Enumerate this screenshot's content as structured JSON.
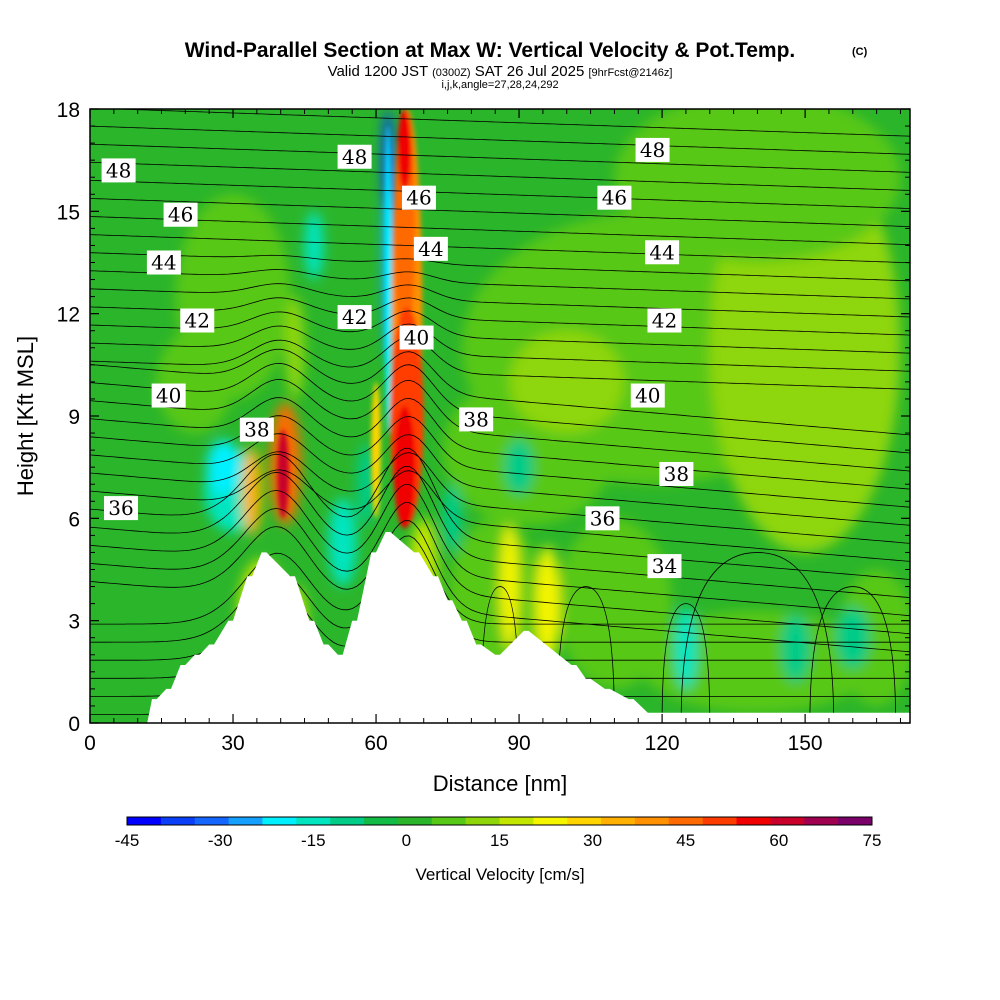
{
  "chart_data": {
    "type": "heatmap",
    "title": "Wind-Parallel Section at Max W: Vertical Velocity & Pot.Temp.",
    "title_unit": "(C)",
    "subtitle_prefix": "Valid 1200 JST",
    "subtitle_utc": "(0300Z)",
    "subtitle_date": "SAT 26 Jul 2025",
    "subtitle_fcst": "[9hrFcst@2146z]",
    "subtitle2": "i,j,k,angle=27,28,24,292",
    "xlabel": "Distance [nm]",
    "ylabel": "Height [Kft MSL]",
    "xlim": [
      0,
      172
    ],
    "ylim": [
      0,
      18
    ],
    "x_ticks": [
      "0",
      "30",
      "60",
      "90",
      "120",
      "150"
    ],
    "y_ticks": [
      "0",
      "3",
      "6",
      "9",
      "12",
      "15",
      "18"
    ],
    "grid": false,
    "colorbar": {
      "label": "Vertical Velocity [cm/s]",
      "range": [
        -45,
        75
      ],
      "ticks": [
        "-45",
        "-30",
        "-15",
        "0",
        "15",
        "30",
        "45",
        "60",
        "75"
      ],
      "colors": [
        "#0000ff",
        "#0a3ff7",
        "#1565ff",
        "#15a0ff",
        "#00f0ff",
        "#00e5c0",
        "#00cc88",
        "#11bb44",
        "#2bb52b",
        "#58c817",
        "#8ed60a",
        "#c3e600",
        "#f5f500",
        "#ffd400",
        "#ffb000",
        "#ff9000",
        "#ff6a00",
        "#ff3c00",
        "#f00000",
        "#c8002a",
        "#a00050",
        "#7a006a"
      ]
    },
    "contour_variable": "Potential Temperature (C)",
    "contour_labels": [
      {
        "text": "48",
        "x": 6,
        "y": 16.2
      },
      {
        "text": "46",
        "x": 19,
        "y": 14.9
      },
      {
        "text": "44",
        "x": 15.5,
        "y": 13.5
      },
      {
        "text": "42",
        "x": 22.5,
        "y": 11.8
      },
      {
        "text": "40",
        "x": 16.5,
        "y": 9.6
      },
      {
        "text": "38",
        "x": 35,
        "y": 8.6
      },
      {
        "text": "36",
        "x": 6.5,
        "y": 6.3
      },
      {
        "text": "48",
        "x": 55.5,
        "y": 16.6
      },
      {
        "text": "46",
        "x": 69,
        "y": 15.4
      },
      {
        "text": "44",
        "x": 71.5,
        "y": 13.9
      },
      {
        "text": "42",
        "x": 55.5,
        "y": 11.9
      },
      {
        "text": "40",
        "x": 68.5,
        "y": 11.3
      },
      {
        "text": "38",
        "x": 81,
        "y": 8.9
      },
      {
        "text": "48",
        "x": 118,
        "y": 16.8
      },
      {
        "text": "46",
        "x": 110,
        "y": 15.4
      },
      {
        "text": "44",
        "x": 120,
        "y": 13.8
      },
      {
        "text": "42",
        "x": 120.5,
        "y": 11.8
      },
      {
        "text": "40",
        "x": 117,
        "y": 9.6
      },
      {
        "text": "38",
        "x": 123,
        "y": 7.3
      },
      {
        "text": "36",
        "x": 107.5,
        "y": 6.0
      },
      {
        "text": "34",
        "x": 120.5,
        "y": 4.6
      }
    ],
    "terrain_x_nm": [
      0,
      12,
      13,
      14,
      16,
      17,
      19,
      20,
      22,
      23,
      25,
      26,
      29,
      30,
      33,
      34,
      36,
      37,
      42,
      43,
      46,
      47,
      49,
      50,
      52,
      53,
      55,
      56,
      59,
      60,
      62,
      63,
      68,
      69,
      72,
      73,
      75,
      76,
      78,
      79,
      81,
      82,
      85,
      86,
      91,
      92,
      101,
      102,
      104,
      105,
      108,
      109,
      113,
      114,
      117,
      118,
      172
    ],
    "terrain_height_kft": [
      0,
      0,
      0.7,
      0.7,
      1.0,
      1.0,
      1.7,
      1.7,
      2.0,
      2.0,
      2.3,
      2.3,
      3.0,
      3.0,
      4.3,
      4.3,
      5.0,
      5.0,
      4.3,
      4.3,
      3.0,
      3.0,
      2.3,
      2.3,
      2.0,
      2.0,
      3.0,
      3.0,
      5.0,
      5.0,
      5.6,
      5.6,
      5.0,
      5.0,
      4.3,
      4.3,
      3.6,
      3.6,
      3.0,
      3.0,
      2.3,
      2.3,
      2.0,
      2.0,
      2.7,
      2.7,
      1.7,
      1.7,
      1.3,
      1.3,
      1.0,
      1.0,
      0.7,
      0.7,
      0.3,
      0.3,
      0.3
    ]
  }
}
